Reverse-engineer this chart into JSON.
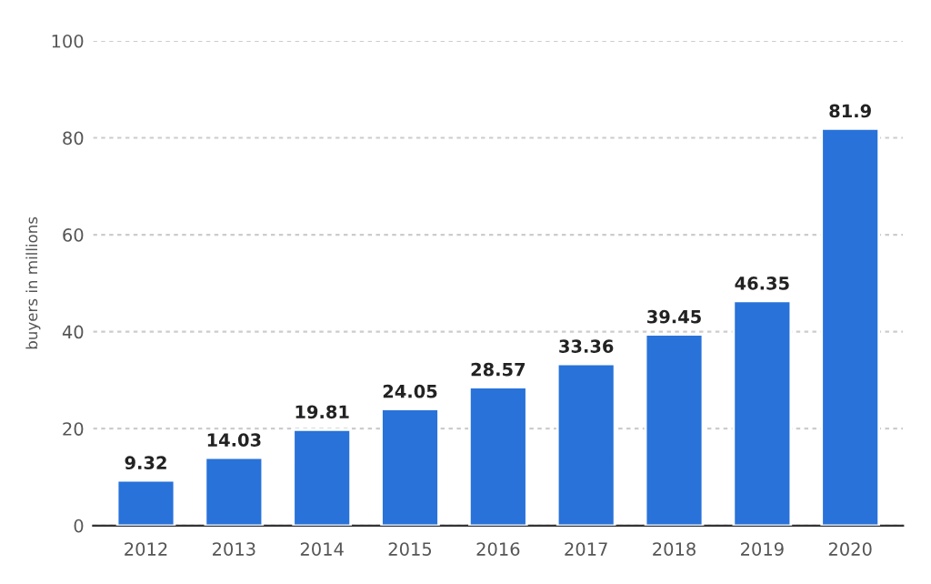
{
  "chart_data": {
    "type": "bar",
    "ylabel": "buyers in millions",
    "categories": [
      "2012",
      "2013",
      "2014",
      "2015",
      "2016",
      "2017",
      "2018",
      "2019",
      "2020"
    ],
    "values": [
      9.32,
      14.03,
      19.81,
      24.05,
      28.57,
      33.36,
      39.45,
      46.35,
      81.9
    ],
    "color": "#2872d9",
    "ylim": [
      0,
      100
    ],
    "yticks": [
      0,
      20,
      40,
      60,
      80,
      100
    ],
    "grid": "y",
    "data_labels": true
  }
}
